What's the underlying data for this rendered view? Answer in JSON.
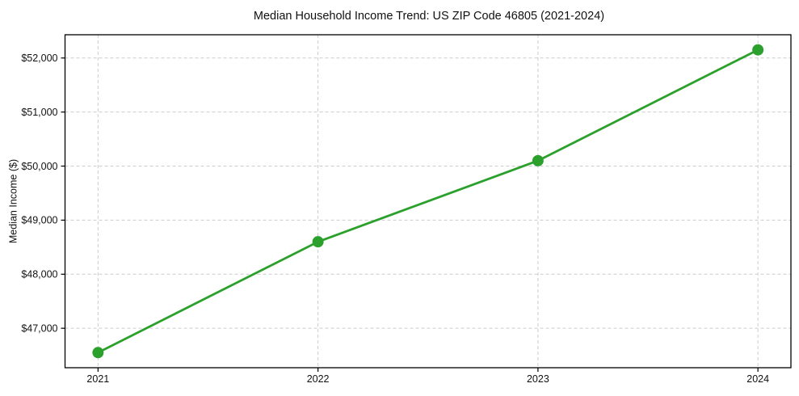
{
  "chart_data": {
    "type": "line",
    "title": "Median Household Income Trend: US ZIP Code 46805 (2021-2024)",
    "xlabel": "",
    "ylabel": "Median Income ($)",
    "x": [
      2021,
      2022,
      2023,
      2024
    ],
    "values": [
      46550,
      48600,
      50100,
      52150
    ],
    "xticks": [
      2021,
      2022,
      2023,
      2024
    ],
    "xtick_labels": [
      "2021",
      "2022",
      "2023",
      "2024"
    ],
    "yticks": [
      47000,
      48000,
      49000,
      50000,
      51000,
      52000
    ],
    "ytick_labels": [
      "$47,000",
      "$48,000",
      "$49,000",
      "$50,000",
      "$51,000",
      "$52,000"
    ],
    "xlim": [
      2020.85,
      2024.15
    ],
    "ylim": [
      46270,
      52430
    ],
    "grid": true,
    "legend": "none",
    "line_color": "#2ca02c",
    "marker": "circle",
    "marker_radius": 7,
    "grid_color": "#cccccc",
    "background_color": "#ffffff",
    "text_color": "#111111"
  }
}
